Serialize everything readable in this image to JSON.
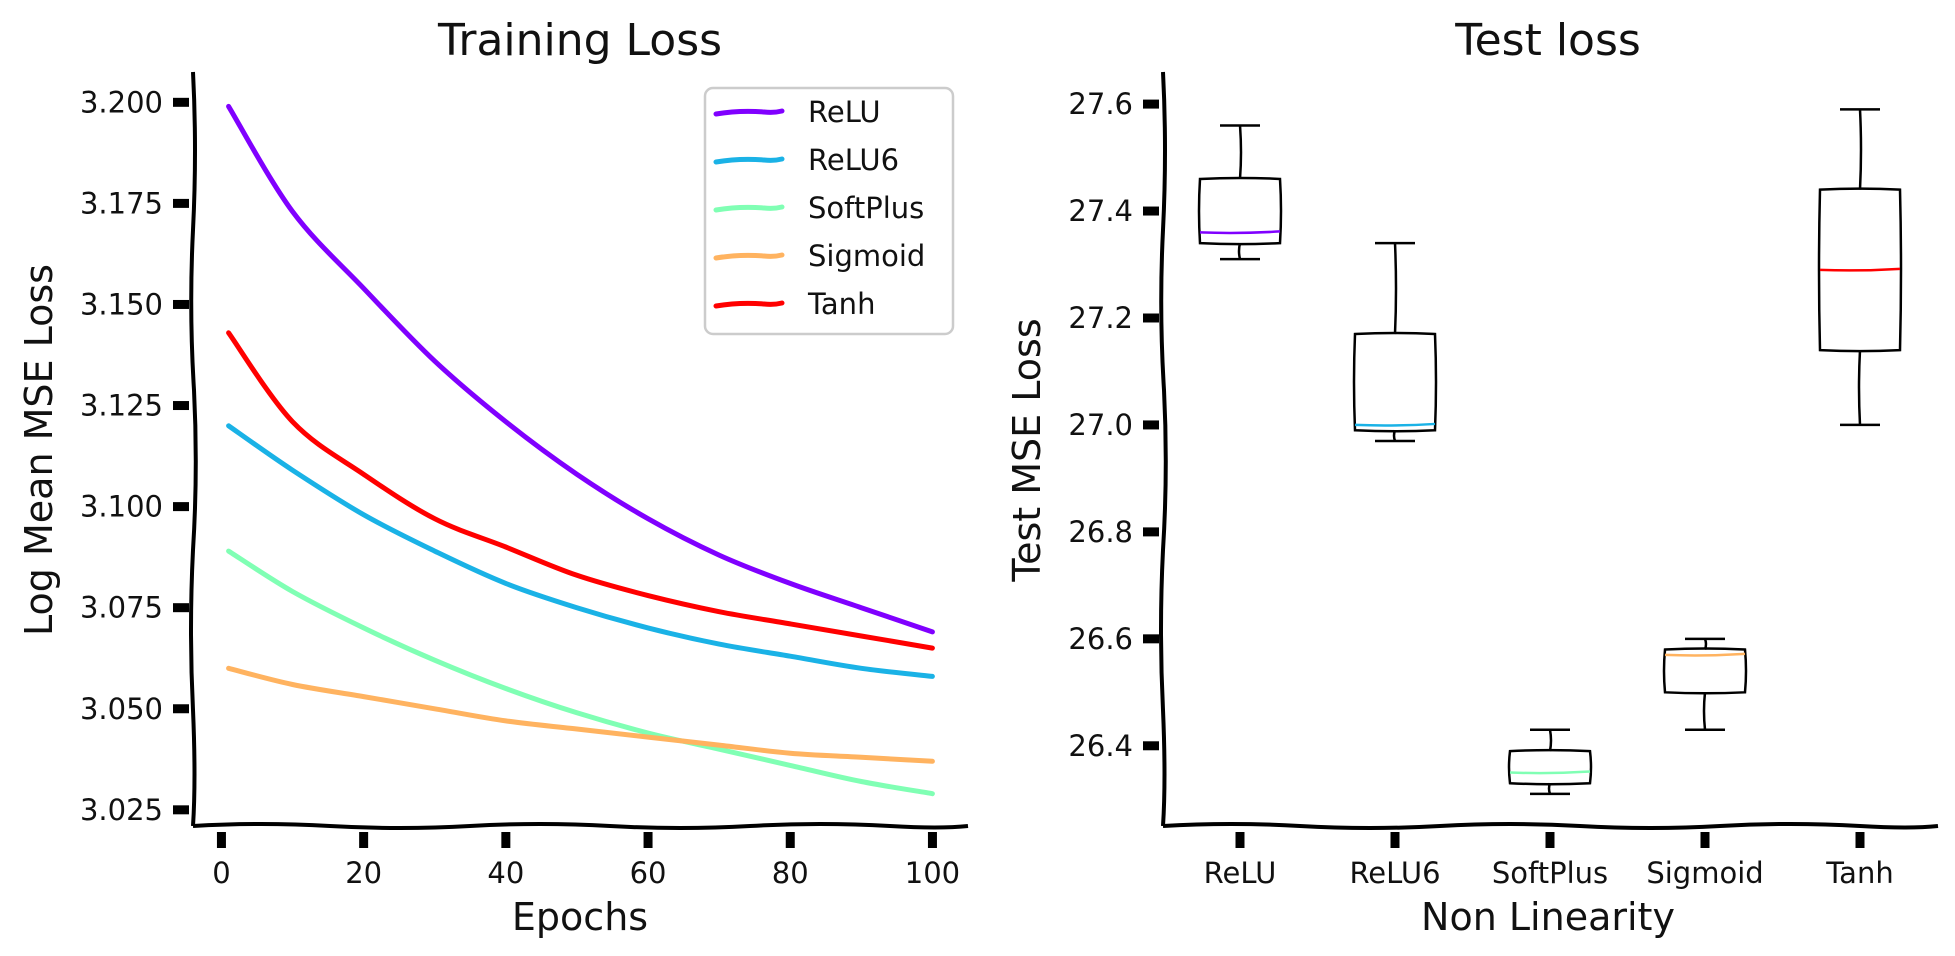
{
  "chart_data": [
    {
      "type": "line",
      "title": "Training Loss",
      "xlabel": "Epochs",
      "ylabel": "Log Mean MSE Loss",
      "xlim": [
        -4,
        105
      ],
      "ylim": [
        3.021,
        3.2075
      ],
      "xticks": [
        0,
        20,
        40,
        60,
        80,
        100
      ],
      "yticks": [
        3.025,
        3.05,
        3.075,
        3.1,
        3.125,
        3.15,
        3.175,
        3.2
      ],
      "ytick_labels": [
        "3.025",
        "3.050",
        "3.075",
        "3.100",
        "3.125",
        "3.150",
        "3.175",
        "3.200"
      ],
      "legend_position": "top-right",
      "x": [
        1,
        10,
        20,
        30,
        40,
        50,
        60,
        70,
        80,
        90,
        100
      ],
      "series": [
        {
          "name": "ReLU",
          "color": "#8000ff",
          "values": [
            3.199,
            3.173,
            3.154,
            3.136,
            3.121,
            3.108,
            3.097,
            3.088,
            3.081,
            3.075,
            3.069
          ]
        },
        {
          "name": "ReLU6",
          "color": "#1ab2e6",
          "values": [
            3.12,
            3.109,
            3.098,
            3.089,
            3.081,
            3.075,
            3.07,
            3.066,
            3.063,
            3.06,
            3.058
          ]
        },
        {
          "name": "SoftPlus",
          "color": "#80ffb4",
          "values": [
            3.089,
            3.079,
            3.07,
            3.062,
            3.055,
            3.049,
            3.044,
            3.04,
            3.036,
            3.032,
            3.029
          ]
        },
        {
          "name": "Sigmoid",
          "color": "#ffb360",
          "values": [
            3.06,
            3.056,
            3.053,
            3.05,
            3.047,
            3.045,
            3.043,
            3.041,
            3.039,
            3.038,
            3.037
          ]
        },
        {
          "name": "Tanh",
          "color": "#ff0000",
          "values": [
            3.143,
            3.121,
            3.108,
            3.097,
            3.09,
            3.083,
            3.078,
            3.074,
            3.071,
            3.068,
            3.065
          ]
        }
      ]
    },
    {
      "type": "box",
      "title": "Test loss",
      "xlabel": "Non Linearity",
      "ylabel": "Test MSE Loss",
      "ylim": [
        26.25,
        27.66
      ],
      "yticks": [
        26.4,
        26.6,
        26.8,
        27.0,
        27.2,
        27.4,
        27.6
      ],
      "ytick_labels": [
        "26.4",
        "26.6",
        "26.8",
        "27.0",
        "27.2",
        "27.4",
        "27.6"
      ],
      "categories": [
        "ReLU",
        "ReLU6",
        "SoftPlus",
        "Sigmoid",
        "Tanh"
      ],
      "boxes": [
        {
          "name": "ReLU",
          "color": "#8000ff",
          "min": 27.31,
          "q1": 27.34,
          "median": 27.36,
          "q3": 27.46,
          "max": 27.56
        },
        {
          "name": "ReLU6",
          "color": "#1ab2e6",
          "min": 26.97,
          "q1": 26.99,
          "median": 27.0,
          "q3": 27.17,
          "max": 27.34
        },
        {
          "name": "SoftPlus",
          "color": "#80ffb4",
          "min": 26.31,
          "q1": 26.33,
          "median": 26.35,
          "q3": 26.39,
          "max": 26.43
        },
        {
          "name": "Sigmoid",
          "color": "#ffb360",
          "min": 26.43,
          "q1": 26.5,
          "median": 26.57,
          "q3": 26.58,
          "max": 26.6
        },
        {
          "name": "Tanh",
          "color": "#ff0000",
          "min": 27.0,
          "q1": 27.14,
          "median": 27.29,
          "q3": 27.44,
          "max": 27.59
        }
      ]
    }
  ]
}
